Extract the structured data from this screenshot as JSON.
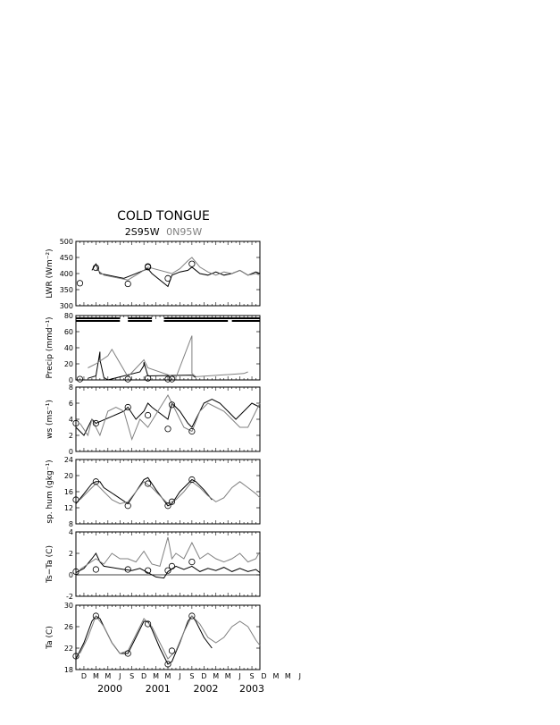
{
  "figure": {
    "title": "COLD TONGUE",
    "subtitle_black": "2S95W",
    "subtitle_gray": "0N95W",
    "colors": {
      "series_2S95W": "#000000",
      "series_0N95W": "#808080"
    }
  },
  "chart_data": [
    {
      "type": "line",
      "id": "lwr",
      "ylabel": "LWR (Wm⁻²)",
      "ylim": [
        300,
        500
      ],
      "yticks": [
        300,
        350,
        400,
        450,
        500
      ],
      "x_time_range": [
        "1999-10",
        "2003-08"
      ],
      "grid": false,
      "series": [
        {
          "name": "2S95W",
          "x": [
            "2000-02",
            "2000-03",
            "2000-04",
            "2000-06",
            "2000-08",
            "2000-10",
            "2000-12",
            "2001-02",
            "2001-04",
            "2001-05",
            "2001-09",
            "2001-10",
            "2001-12",
            "2002-02",
            "2002-03",
            "2002-05",
            "2002-07",
            "2002-09",
            "2002-11",
            "2003-01",
            "2003-03",
            "2003-05",
            "2003-07",
            "2003-08"
          ],
          "values": [
            410,
            430,
            400,
            395,
            390,
            385,
            395,
            405,
            415,
            400,
            360,
            395,
            405,
            410,
            420,
            400,
            395,
            405,
            395,
            400,
            410,
            395,
            405,
            400
          ]
        },
        {
          "name": "0N95W",
          "x": [
            "2000-03",
            "2000-05",
            "2000-07",
            "2000-09",
            "2000-11",
            "2001-01",
            "2001-03",
            "2001-04",
            "2001-10",
            "2001-12",
            "2002-02",
            "2002-03",
            "2002-05",
            "2002-07",
            "2002-09",
            "2002-11",
            "2003-01",
            "2003-03",
            "2003-05",
            "2003-07",
            "2003-08"
          ],
          "values": [
            415,
            395,
            390,
            385,
            380,
            395,
            410,
            420,
            400,
            415,
            440,
            450,
            420,
            405,
            395,
            405,
            400,
            410,
            395,
            400,
            395
          ]
        }
      ],
      "markers": {
        "x": [
          "1999-11",
          "2000-03",
          "2000-11",
          "2001-04",
          "2001-04",
          "2001-09",
          "2002-03"
        ],
        "values": [
          370,
          418,
          368,
          422,
          420,
          385,
          430
        ]
      }
    },
    {
      "type": "line",
      "id": "precip",
      "ylabel": "Precip (mmd⁻¹)",
      "ylim": [
        0,
        80
      ],
      "yticks": [
        0,
        20,
        40,
        60,
        80
      ],
      "x_time_range": [
        "1999-10",
        "2003-08"
      ],
      "grid": false,
      "series": [
        {
          "name": "2S95W",
          "x": [
            "2000-01",
            "2000-03",
            "2000-04",
            "2000-04",
            "2000-05",
            "2000-06",
            "2001-02",
            "2001-03",
            "2001-03",
            "2001-04",
            "2002-03",
            "2002-04"
          ],
          "values": [
            2,
            5,
            35,
            25,
            3,
            0,
            10,
            18,
            22,
            5,
            6,
            3
          ]
        },
        {
          "name": "0N95W",
          "x": [
            "2000-01",
            "2000-03",
            "2000-06",
            "2000-07",
            "2000-11",
            "2001-03",
            "2001-04",
            "2001-11",
            "2002-03",
            "2002-03",
            "2002-04",
            "2003-04",
            "2003-05"
          ],
          "values": [
            15,
            20,
            30,
            38,
            4,
            25,
            15,
            3,
            55,
            8,
            4,
            8,
            10
          ]
        }
      ],
      "markers": {
        "x": [
          "1999-11",
          "2000-11",
          "2001-04",
          "2001-09",
          "2001-10"
        ],
        "values": [
          1,
          1,
          2,
          1,
          1
        ]
      },
      "data_availability": {
        "2S95W": [
          [
            "1999-10",
            "2000-09"
          ],
          [
            "2000-11",
            "2001-05"
          ],
          [
            "2001-08",
            "2003-08"
          ]
        ],
        "0N95W": [
          [
            "1999-10",
            "2000-09"
          ],
          [
            "2000-11",
            "2001-05"
          ],
          [
            "2001-08",
            "2002-12"
          ],
          [
            "2003-01",
            "2003-08"
          ]
        ]
      }
    },
    {
      "type": "line",
      "id": "wspd",
      "ylabel": "ws (ms⁻¹)",
      "ylim": [
        0,
        8
      ],
      "yticks": [
        0,
        2,
        4,
        6,
        8
      ],
      "x_time_range": [
        "1999-10",
        "2003-08"
      ],
      "grid": false,
      "series": [
        {
          "name": "2S95W",
          "x": [
            "1999-10",
            "1999-12",
            "2000-02",
            "2000-03",
            "2000-10",
            "2000-11",
            "2001-01",
            "2001-03",
            "2001-04",
            "2001-05",
            "2001-09",
            "2001-10",
            "2001-12",
            "2002-02",
            "2002-03",
            "2002-04",
            "2002-06",
            "2002-08",
            "2002-10",
            "2002-12",
            "2003-02",
            "2003-04",
            "2003-06",
            "2003-08"
          ],
          "values": [
            3,
            2,
            4,
            3.5,
            5,
            5.5,
            4,
            5,
            6,
            5.5,
            4,
            6,
            5,
            3.5,
            3,
            4,
            6,
            6.5,
            6,
            5,
            4,
            5,
            6,
            5.5
          ]
        },
        {
          "name": "0N95W",
          "x": [
            "1999-11",
            "2000-01",
            "2000-02",
            "2000-04",
            "2000-06",
            "2000-08",
            "2000-10",
            "2000-12",
            "2001-02",
            "2001-04",
            "2001-09",
            "2001-11",
            "2002-01",
            "2002-03",
            "2002-05",
            "2002-07",
            "2002-09",
            "2002-11",
            "2003-01",
            "2003-03",
            "2003-05",
            "2003-07",
            "2003-08"
          ],
          "values": [
            3.5,
            2,
            4,
            2,
            5,
            5.5,
            5,
            1.5,
            4,
            3,
            7,
            5,
            3,
            2.5,
            5,
            6,
            5.5,
            5,
            4,
            3,
            3,
            5,
            6
          ]
        }
      ],
      "markers": {
        "x": [
          "1999-10",
          "2000-03",
          "2000-11",
          "2001-04",
          "2001-09",
          "2001-10",
          "2002-03"
        ],
        "values": [
          3.5,
          3.5,
          5.5,
          4.5,
          2.8,
          5.8,
          2.5
        ]
      }
    },
    {
      "type": "line",
      "id": "rh",
      "ylabel": "sp. hum (gkg⁻¹)",
      "ylim": [
        8,
        24
      ],
      "yticks": [
        8,
        12,
        16,
        20,
        24
      ],
      "x_time_range": [
        "1999-10",
        "2003-08"
      ],
      "grid": false,
      "series": [
        {
          "name": "2S95W",
          "x": [
            "1999-10",
            "1999-12",
            "2000-02",
            "2000-03",
            "2000-04",
            "2000-05",
            "2000-11",
            "2001-01",
            "2001-03",
            "2001-04",
            "2001-05",
            "2001-06",
            "2001-09",
            "2001-10",
            "2001-12",
            "2002-02",
            "2002-03",
            "2002-04",
            "2002-06",
            "2002-08"
          ],
          "values": [
            13,
            15.5,
            18,
            18.5,
            18.5,
            17,
            13,
            16,
            19,
            19.5,
            18,
            16.5,
            12.5,
            13,
            16,
            18,
            19,
            18.5,
            16.5,
            14
          ]
        },
        {
          "name": "0N95W",
          "x": [
            "1999-11",
            "2000-01",
            "2000-03",
            "2000-05",
            "2000-07",
            "2000-09",
            "2000-11",
            "2001-01",
            "2001-03",
            "2001-05",
            "2001-07",
            "2001-09",
            "2001-11",
            "2002-01",
            "2002-03",
            "2002-05",
            "2002-07",
            "2002-09",
            "2002-11",
            "2003-01",
            "2003-03",
            "2003-05",
            "2003-07",
            "2003-08"
          ],
          "values": [
            14,
            16,
            18,
            16,
            14,
            13,
            13.5,
            16,
            18.5,
            17,
            15,
            13,
            14,
            16,
            18.5,
            17,
            15,
            13.5,
            14.5,
            17,
            18.5,
            17,
            15.5,
            14.5
          ]
        }
      ],
      "markers": {
        "x": [
          "1999-10",
          "2000-03",
          "2000-11",
          "2001-04",
          "2001-09",
          "2001-10",
          "2002-03"
        ],
        "values": [
          14,
          18.5,
          12.5,
          18,
          12.5,
          13.5,
          19
        ]
      }
    },
    {
      "type": "line",
      "id": "tsta",
      "ylabel": "Ts−Ta (C)",
      "ylim": [
        -2,
        4
      ],
      "yticks": [
        -2,
        0,
        2,
        4
      ],
      "x_time_range": [
        "1999-10",
        "2003-08"
      ],
      "grid": false,
      "zero_line": true,
      "series": [
        {
          "name": "2S95W",
          "x": [
            "1999-10",
            "1999-12",
            "2000-02",
            "2000-03",
            "2000-04",
            "2000-05",
            "2000-10",
            "2000-12",
            "2001-02",
            "2001-04",
            "2001-06",
            "2001-08",
            "2001-09",
            "2001-11",
            "2002-01",
            "2002-03",
            "2002-05",
            "2002-07",
            "2002-09",
            "2002-11",
            "2003-01",
            "2003-03",
            "2003-05",
            "2003-07",
            "2003-08"
          ],
          "values": [
            0.2,
            0.6,
            1.5,
            2,
            1.2,
            0.8,
            0.5,
            0.4,
            0.6,
            0.2,
            -0.2,
            -0.3,
            0.3,
            0.8,
            0.5,
            0.8,
            0.3,
            0.6,
            0.4,
            0.7,
            0.3,
            0.6,
            0.3,
            0.5,
            0.2
          ]
        },
        {
          "name": "0N95W",
          "x": [
            "1999-11",
            "2000-01",
            "2000-03",
            "2000-05",
            "2000-07",
            "2000-09",
            "2000-11",
            "2001-01",
            "2001-03",
            "2001-05",
            "2001-07",
            "2001-09",
            "2001-10",
            "2001-11",
            "2002-01",
            "2002-03",
            "2002-05",
            "2002-07",
            "2002-09",
            "2002-11",
            "2003-01",
            "2003-03",
            "2003-05",
            "2003-07",
            "2003-08"
          ],
          "values": [
            0.5,
            1,
            1.5,
            1,
            2,
            1.5,
            1.5,
            1.2,
            2.2,
            1,
            0.8,
            3.5,
            1.5,
            2,
            1.5,
            3,
            1.5,
            2,
            1.5,
            1.2,
            1.5,
            2,
            1.2,
            1.5,
            2.2
          ]
        }
      ],
      "markers": {
        "x": [
          "1999-10",
          "2000-03",
          "2000-11",
          "2001-04",
          "2001-09",
          "2001-10",
          "2002-03"
        ],
        "values": [
          0.3,
          0.5,
          0.5,
          0.4,
          0.4,
          0.8,
          1.2
        ]
      }
    },
    {
      "type": "line",
      "id": "airt",
      "ylabel": "Ta (C)",
      "ylim": [
        18,
        30
      ],
      "yticks": [
        18,
        22,
        26,
        30
      ],
      "x_time_range": [
        "1999-10",
        "2003-08"
      ],
      "grid": false,
      "x_month_ticks": [
        "D",
        "M",
        "M",
        "J",
        "S",
        "D",
        "M",
        "M",
        "J",
        "S",
        "D",
        "M",
        "M",
        "J",
        "S",
        "D",
        "M",
        "M",
        "J"
      ],
      "x_year_labels": [
        "2000",
        "2001",
        "2002",
        "2003"
      ],
      "series": [
        {
          "name": "2S95W",
          "x": [
            "1999-10",
            "1999-12",
            "2000-02",
            "2000-03",
            "2000-04",
            "2000-05",
            "2000-07",
            "2000-09",
            "2000-11",
            "2001-01",
            "2001-03",
            "2001-04",
            "2001-05",
            "2001-07",
            "2001-09",
            "2001-10",
            "2001-12",
            "2002-02",
            "2002-03",
            "2002-04",
            "2002-06",
            "2002-08"
          ],
          "values": [
            20,
            23,
            27,
            28,
            27.5,
            26,
            23,
            21,
            21,
            24,
            27,
            27,
            25.5,
            22,
            19,
            19.5,
            23,
            27,
            28,
            27,
            24,
            22
          ]
        },
        {
          "name": "0N95W",
          "x": [
            "1999-11",
            "2000-01",
            "2000-03",
            "2000-05",
            "2000-07",
            "2000-09",
            "2000-11",
            "2001-01",
            "2001-03",
            "2001-05",
            "2001-07",
            "2001-09",
            "2001-11",
            "2002-01",
            "2002-03",
            "2002-05",
            "2002-07",
            "2002-09",
            "2002-11",
            "2003-01",
            "2003-03",
            "2003-05",
            "2003-07",
            "2003-08"
          ],
          "values": [
            21,
            24,
            28,
            26,
            23,
            21,
            21.5,
            24.5,
            27.5,
            26,
            23,
            20,
            21.5,
            25,
            28,
            26.5,
            24,
            23,
            24,
            26,
            27,
            26,
            23.5,
            22.5
          ]
        }
      ],
      "markers": {
        "x": [
          "1999-10",
          "2000-03",
          "2000-11",
          "2001-04",
          "2001-09",
          "2001-10",
          "2002-03"
        ],
        "values": [
          20.5,
          28,
          21,
          26.5,
          19,
          21.5,
          28
        ]
      }
    }
  ]
}
